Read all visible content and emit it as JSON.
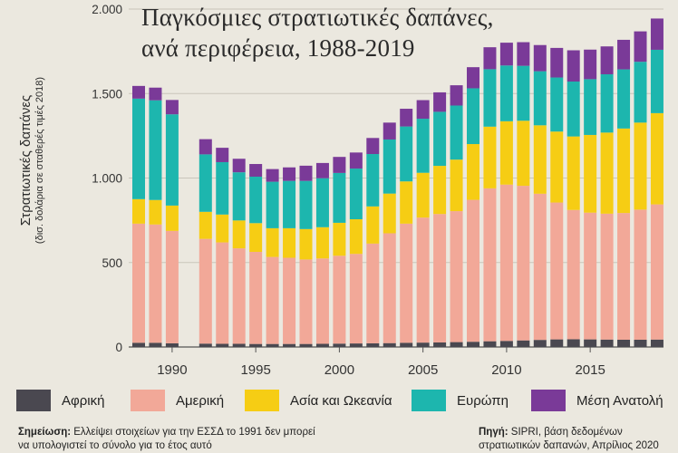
{
  "title_line1": "Παγκόσμιες στρατιωτικές δαπάνες,",
  "title_line2": "ανά περιφέρεια, 1988-2019",
  "ylabel_main": "Στρατιωτικές δαπάνες",
  "ylabel_sub": "(δισ. δολάρια σε σταθερές τιμές 2018)",
  "legend": [
    {
      "label": "Αφρική",
      "color": "#4a4850"
    },
    {
      "label": "Αμερική",
      "color": "#f2a898"
    },
    {
      "label": "Ασία και Ωκεανία",
      "color": "#f6cd14"
    },
    {
      "label": "Ευρώπη",
      "color": "#1db6ae"
    },
    {
      "label": "Μέση Ανατολή",
      "color": "#7a3a98"
    }
  ],
  "note_label": "Σημείωση:",
  "note_text": "Ελλείψει στοιχείων για την ΕΣΣΔ το 1991 δεν μπορεί να υπολογιστεί το σύνολο για το έτος αυτό",
  "source_label": "Πηγή:",
  "source_text": "SIPRI, βάση δεδομένων στρατιωτικών δαπανών, Απρίλιος 2020",
  "chart_data": {
    "type": "bar",
    "stacked": true,
    "title": "Παγκόσμιες στρατιωτικές δαπάνες, ανά περιφέρεια, 1988-2019",
    "ylabel": "Στρατιωτικές δαπάνες (δισ. δολάρια σε σταθερές τιμές 2018)",
    "ylim": [
      0,
      2000
    ],
    "yticks": [
      0,
      500,
      1000,
      1500,
      2000
    ],
    "ytick_labels": [
      "0",
      "500",
      "1.000",
      "1.500",
      "2.000"
    ],
    "xticks": [
      1990,
      1995,
      2000,
      2005,
      2010,
      2015
    ],
    "grid": true,
    "legend_position": "bottom",
    "categories": [
      1988,
      1989,
      1990,
      1991,
      1992,
      1993,
      1994,
      1995,
      1996,
      1997,
      1998,
      1999,
      2000,
      2001,
      2002,
      2003,
      2004,
      2005,
      2006,
      2007,
      2008,
      2009,
      2010,
      2011,
      2012,
      2013,
      2014,
      2015,
      2016,
      2017,
      2018,
      2019
    ],
    "series": [
      {
        "name": "Αφρική",
        "color": "#4a4850",
        "values": [
          25,
          25,
          22,
          null,
          20,
          19,
          19,
          18,
          18,
          18,
          18,
          19,
          20,
          21,
          22,
          23,
          25,
          26,
          27,
          29,
          31,
          34,
          36,
          39,
          42,
          45,
          46,
          45,
          44,
          43,
          43,
          44
        ]
      },
      {
        "name": "Αμερική",
        "color": "#f2a898",
        "values": [
          705,
          700,
          665,
          null,
          620,
          600,
          565,
          545,
          515,
          510,
          500,
          505,
          520,
          530,
          590,
          650,
          705,
          740,
          760,
          775,
          840,
          905,
          925,
          915,
          865,
          810,
          765,
          750,
          745,
          750,
          770,
          800
        ]
      },
      {
        "name": "Ασία και Ωκεανία",
        "color": "#f6cd14",
        "values": [
          145,
          145,
          150,
          null,
          160,
          165,
          165,
          170,
          170,
          175,
          180,
          185,
          195,
          205,
          220,
          235,
          250,
          265,
          285,
          305,
          330,
          365,
          375,
          385,
          405,
          420,
          435,
          460,
          480,
          500,
          515,
          540
        ]
      },
      {
        "name": "Ευρώπη",
        "color": "#1db6ae",
        "values": [
          595,
          590,
          540,
          null,
          340,
          310,
          285,
          275,
          275,
          280,
          285,
          290,
          295,
          300,
          310,
          320,
          325,
          320,
          320,
          320,
          330,
          340,
          330,
          325,
          320,
          320,
          325,
          330,
          345,
          350,
          360,
          375
        ]
      },
      {
        "name": "Μέση Ανατολή",
        "color": "#7a3a98",
        "values": [
          75,
          75,
          85,
          null,
          90,
          85,
          80,
          75,
          75,
          80,
          90,
          90,
          95,
          95,
          95,
          100,
          105,
          110,
          115,
          120,
          125,
          130,
          135,
          140,
          155,
          175,
          185,
          175,
          165,
          175,
          180,
          185
        ]
      }
    ]
  }
}
